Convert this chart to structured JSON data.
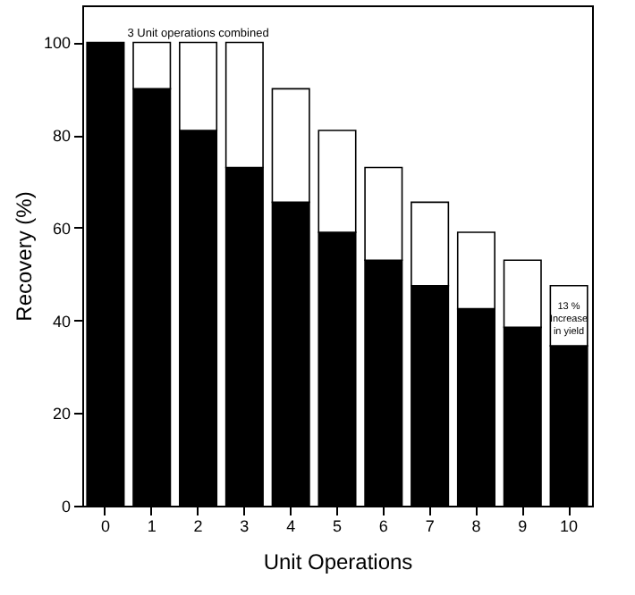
{
  "chart_data": {
    "type": "bar",
    "stacked": true,
    "xlabel": "Unit Operations",
    "ylabel": "Recovery (%)",
    "categories": [
      "0",
      "1",
      "2",
      "3",
      "4",
      "5",
      "6",
      "7",
      "8",
      "9",
      "10"
    ],
    "series": [
      {
        "color": "#000000",
        "values": [
          100,
          90,
          81,
          73,
          65.5,
          59,
          53,
          47.5,
          42.5,
          38.5,
          34.5
        ]
      },
      {
        "color": "#ffffff",
        "values": [
          null,
          10,
          19,
          27,
          24.5,
          22,
          20,
          18,
          16.5,
          14.5,
          13
        ]
      }
    ],
    "ylim": [
      0,
      108
    ],
    "yticks": [
      0,
      20,
      40,
      60,
      80,
      100
    ],
    "grid": false,
    "legend": false,
    "annotations": [
      {
        "text": "3 Unit operations combined",
        "x": "2",
        "y": 102
      },
      "13 %\nIncrease\nin yield"
    ]
  }
}
